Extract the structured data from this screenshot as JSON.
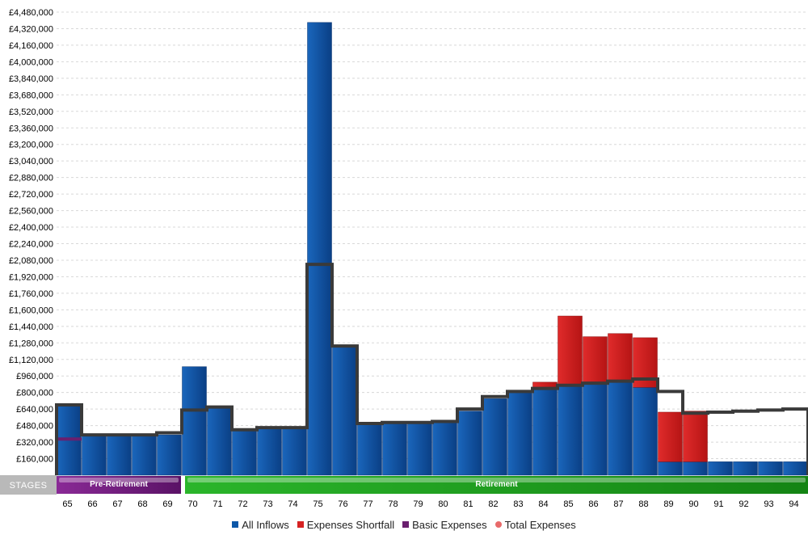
{
  "chart_data": {
    "type": "bar",
    "currency_prefix": "£",
    "ylim": [
      0,
      4480000
    ],
    "ytick_step": 160000,
    "ytick_labels": [
      "£160,000",
      "£320,000",
      "£480,000",
      "£640,000",
      "£800,000",
      "£960,000",
      "£1,120,000",
      "£1,280,000",
      "£1,440,000",
      "£1,600,000",
      "£1,760,000",
      "£1,920,000",
      "£2,080,000",
      "£2,240,000",
      "£2,400,000",
      "£2,560,000",
      "£2,720,000",
      "£2,880,000",
      "£3,040,000",
      "£3,200,000",
      "£3,360,000",
      "£3,520,000",
      "£3,680,000",
      "£3,840,000",
      "£4,000,000",
      "£4,160,000",
      "£4,320,000",
      "£4,480,000"
    ],
    "categories": [
      "65",
      "66",
      "67",
      "68",
      "69",
      "70",
      "71",
      "72",
      "73",
      "74",
      "75",
      "76",
      "77",
      "78",
      "79",
      "80",
      "81",
      "82",
      "83",
      "84",
      "85",
      "86",
      "87",
      "88",
      "89",
      "90",
      "91",
      "92",
      "93",
      "94"
    ],
    "grid": true,
    "legend_position": "bottom",
    "series": [
      {
        "name": "All Inflows",
        "color": "#0c57a8",
        "values": [
          680000,
          390000,
          390000,
          390000,
          390000,
          1050000,
          660000,
          440000,
          460000,
          460000,
          4380000,
          1250000,
          500000,
          500000,
          500000,
          510000,
          620000,
          740000,
          800000,
          830000,
          860000,
          880000,
          900000,
          850000,
          130000,
          130000,
          130000,
          130000,
          130000,
          130000
        ]
      },
      {
        "name": "Expenses Shortfall",
        "color": "#d62222",
        "values": [
          0,
          0,
          0,
          0,
          0,
          0,
          0,
          0,
          0,
          0,
          0,
          0,
          0,
          0,
          0,
          0,
          0,
          0,
          0,
          70000,
          680000,
          460000,
          470000,
          480000,
          480000,
          490000,
          0,
          0,
          0,
          0
        ]
      },
      {
        "name": "Basic Expenses",
        "color": "#6a1f6e",
        "values": [
          350000,
          0,
          0,
          0,
          0,
          0,
          0,
          0,
          0,
          0,
          0,
          0,
          0,
          0,
          0,
          0,
          0,
          0,
          0,
          0,
          0,
          0,
          0,
          0,
          0,
          0,
          0,
          0,
          0,
          0
        ]
      },
      {
        "name": "Total Expenses",
        "color": "#e86a6a",
        "values": [
          680000,
          390000,
          390000,
          390000,
          410000,
          630000,
          660000,
          440000,
          460000,
          460000,
          2040000,
          1250000,
          500000,
          510000,
          510000,
          520000,
          640000,
          760000,
          810000,
          840000,
          870000,
          890000,
          910000,
          930000,
          810000,
          600000,
          610000,
          620000,
          630000,
          640000
        ]
      }
    ],
    "stages": [
      {
        "label": "Pre-Retirement",
        "from": "65",
        "to": "69",
        "color": "#7a1f86"
      },
      {
        "label": "Retirement",
        "from": "70",
        "to": "94",
        "color": "#1a9a1a"
      }
    ],
    "stages_title": "STAGES"
  }
}
